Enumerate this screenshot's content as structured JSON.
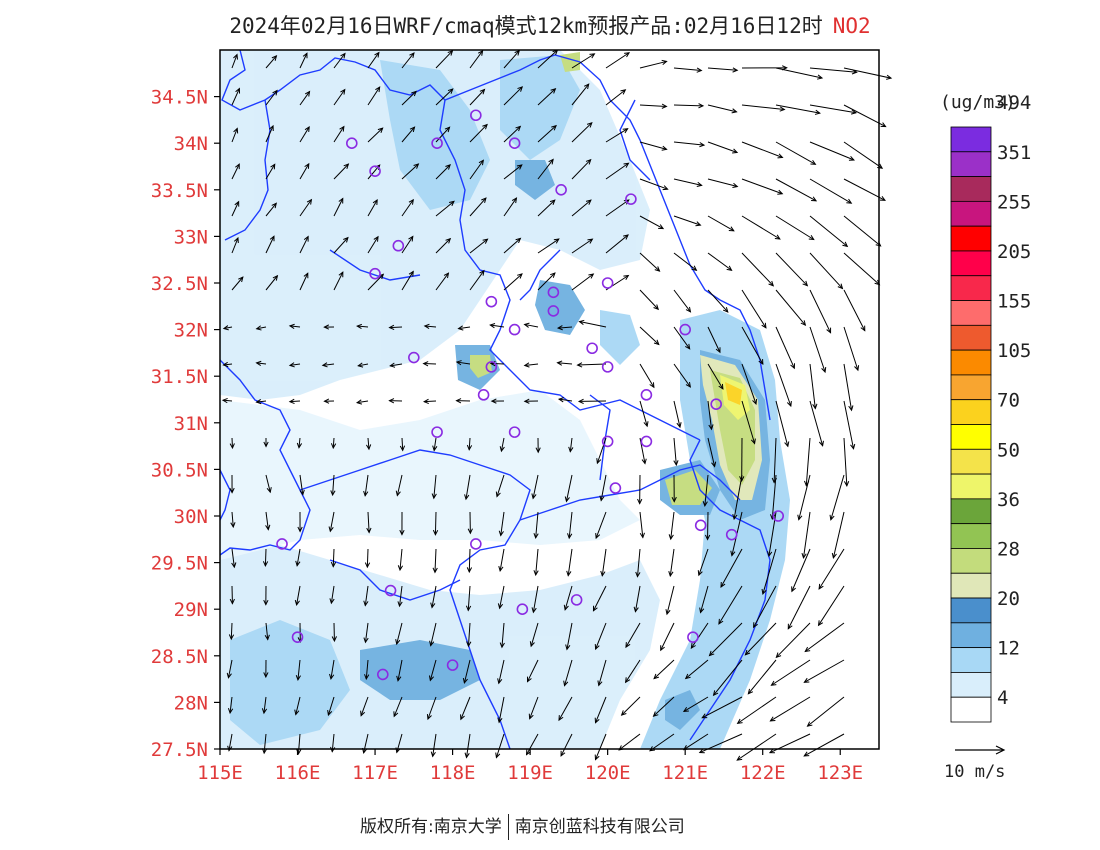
{
  "title": {
    "main": "2024年02月16日WRF/cmaq模式12km预报产品:02月16日12时",
    "pollutant": "NO2"
  },
  "map": {
    "lon_ticks": [
      "115E",
      "116E",
      "117E",
      "118E",
      "119E",
      "120E",
      "121E",
      "122E",
      "123E"
    ],
    "lat_ticks": [
      "27.5N",
      "28N",
      "28.5N",
      "29N",
      "29.5N",
      "30N",
      "30.5N",
      "31N",
      "31.5N",
      "32N",
      "32.5N",
      "33N",
      "33.5N",
      "34N",
      "34.5N"
    ],
    "lon_range": [
      115,
      123.5
    ],
    "lat_range": [
      27.5,
      35
    ],
    "tick_label_color": "#e03a3a",
    "boundary_color": "#1e3cff",
    "station_color": "#8a2be2"
  },
  "legend": {
    "unit": "(ug/m3)",
    "labels": [
      "4",
      "12",
      "20",
      "28",
      "36",
      "50",
      "70",
      "105",
      "155",
      "205",
      "255",
      "351",
      "494"
    ],
    "colors": [
      "#ffffff",
      "#d9eefb",
      "#a8d8f5",
      "#6fb0e0",
      "#4a8fcc",
      "#e0e7b8",
      "#c3dc7c",
      "#92c453",
      "#6ba53a",
      "#eef56a",
      "#f4e34a",
      "#ffff00",
      "#fbd21e",
      "#f8a530",
      "#fb8a00",
      "#ee5a2e",
      "#fe6c6c",
      "#f8284b",
      "#ff004a",
      "#ff0000",
      "#c8157e",
      "#a82a5c",
      "#9b30c8",
      "#7b2ce0"
    ]
  },
  "wind_ref": {
    "label": "10 m/s"
  },
  "footer": {
    "copyright": "版权所有:南京大学",
    "company": "南京创蓝科技有限公司"
  }
}
